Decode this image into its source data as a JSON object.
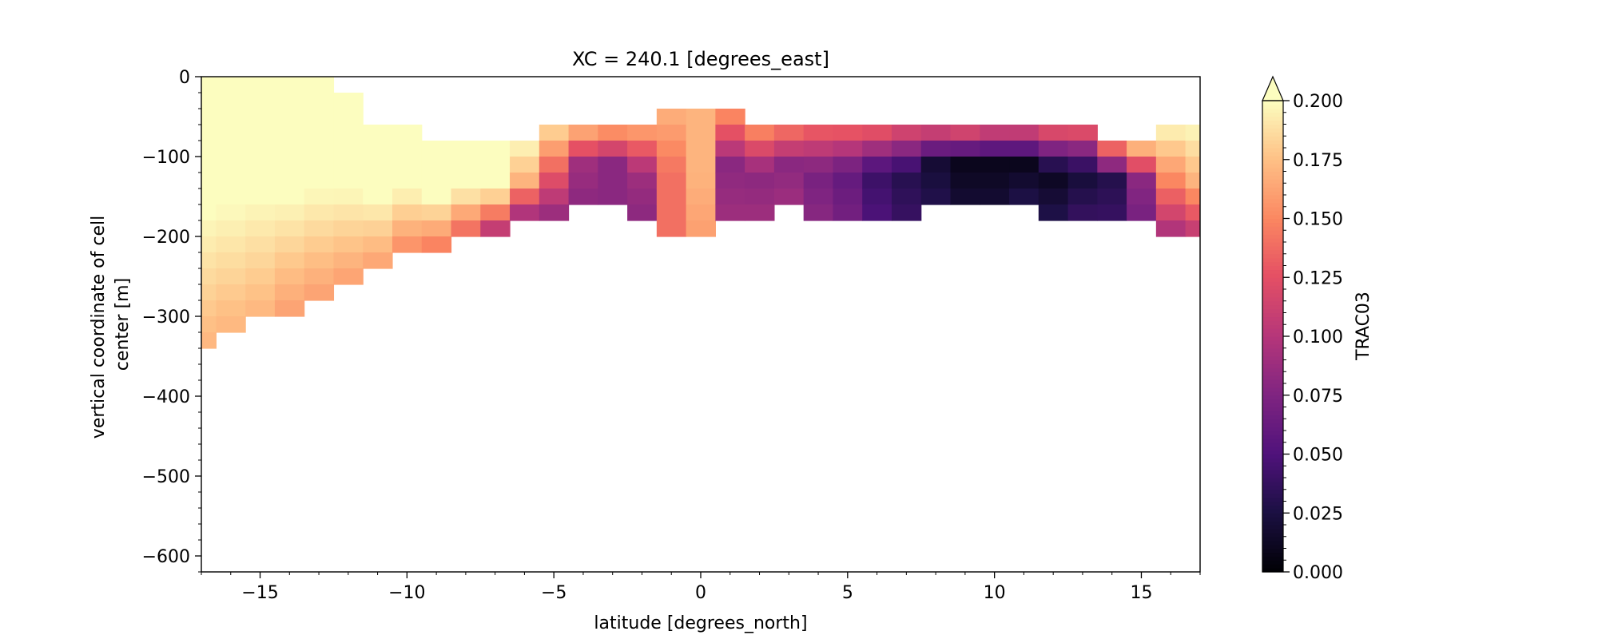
{
  "chart_data": {
    "type": "heatmap",
    "title": "XC = 240.1 [degrees_east]",
    "xlabel": "latitude [degrees_north]",
    "ylabel_line1": "vertical coordinate of cell",
    "ylabel_line2": "center [m]",
    "colorbar_label": "TRAC03",
    "colormap": "magma",
    "colorbar_extend": "max",
    "xlim": [
      -17,
      17
    ],
    "ylim": [
      -620,
      0
    ],
    "clim": [
      0.0,
      0.2
    ],
    "x_ticks": [
      -15,
      -10,
      -5,
      0,
      5,
      10,
      15
    ],
    "x_tick_labels": [
      "−15",
      "−10",
      "−5",
      "0",
      "5",
      "10",
      "15"
    ],
    "y_ticks": [
      0,
      -100,
      -200,
      -300,
      -400,
      -500,
      -600
    ],
    "y_tick_labels": [
      "0",
      "−100",
      "−200",
      "−300",
      "−400",
      "−500",
      "−600"
    ],
    "colorbar_ticks": [
      0.0,
      0.025,
      0.05,
      0.075,
      0.1,
      0.125,
      0.15,
      0.175,
      0.2
    ],
    "colorbar_tick_labels": [
      "0.000",
      "0.025",
      "0.050",
      "0.075",
      "0.100",
      "0.125",
      "0.150",
      "0.175",
      "0.200"
    ],
    "latitudes": [
      -17.0,
      -16.0,
      -15.0,
      -14.0,
      -13.0,
      -12.0,
      -11.0,
      -10.0,
      -9.0,
      -8.0,
      -7.0,
      -6.0,
      -5.0,
      -4.0,
      -3.0,
      -2.0,
      -1.0,
      0.0,
      1.0,
      2.0,
      3.0,
      4.0,
      5.0,
      6.0,
      7.0,
      8.0,
      9.0,
      10.0,
      11.0,
      12.0,
      13.0,
      14.0,
      15.0,
      16.0,
      17.0
    ],
    "depth_bounds": [
      0,
      -20,
      -40,
      -60,
      -80,
      -100,
      -120,
      -140,
      -160,
      -180,
      -200,
      -220,
      -240,
      -260,
      -280,
      -300,
      -320,
      -340
    ],
    "surface_depth": [
      0,
      0,
      0,
      0,
      0,
      -20,
      -60,
      -60,
      -80,
      -80,
      -80,
      -80,
      -60,
      -60,
      -60,
      -60,
      -40,
      -40,
      -40,
      -60,
      -60,
      -60,
      -60,
      -60,
      -60,
      -60,
      -60,
      -60,
      -60,
      -60,
      -60,
      -80,
      -80,
      -60,
      -60
    ],
    "bottom_depth": [
      -340,
      -320,
      -300,
      -300,
      -280,
      -260,
      -240,
      -220,
      -220,
      -200,
      -200,
      -180,
      -180,
      -160,
      -160,
      -180,
      -200,
      -200,
      -180,
      -180,
      -160,
      -180,
      -180,
      -180,
      -180,
      -160,
      -160,
      -160,
      -160,
      -180,
      -180,
      -180,
      -180,
      -200,
      -200
    ],
    "surface_values": [
      0.2,
      0.2,
      0.2,
      0.2,
      0.2,
      0.2,
      0.2,
      0.2,
      0.2,
      0.2,
      0.2,
      0.2,
      0.19,
      0.18,
      0.17,
      0.17,
      0.17,
      0.17,
      0.16,
      0.16,
      0.15,
      0.14,
      0.14,
      0.14,
      0.13,
      0.13,
      0.14,
      0.13,
      0.13,
      0.14,
      0.14,
      0.16,
      0.19,
      0.2,
      0.2
    ],
    "core_values": [
      0.2,
      0.2,
      0.2,
      0.2,
      0.2,
      0.2,
      0.2,
      0.2,
      0.2,
      0.2,
      0.2,
      0.17,
      0.13,
      0.09,
      0.08,
      0.09,
      0.14,
      0.17,
      0.08,
      0.08,
      0.08,
      0.07,
      0.06,
      0.04,
      0.03,
      0.02,
      0.01,
      0.01,
      0.01,
      0.01,
      0.02,
      0.03,
      0.08,
      0.15,
      0.17
    ],
    "bottom_values": [
      0.17,
      0.17,
      0.17,
      0.16,
      0.16,
      0.16,
      0.16,
      0.15,
      0.14,
      0.13,
      0.09,
      0.08,
      0.08,
      0.08,
      0.08,
      0.08,
      0.14,
      0.16,
      0.09,
      0.09,
      0.09,
      0.08,
      0.07,
      0.05,
      0.04,
      0.03,
      0.02,
      0.02,
      0.03,
      0.03,
      0.04,
      0.04,
      0.07,
      0.09,
      0.1
    ]
  }
}
